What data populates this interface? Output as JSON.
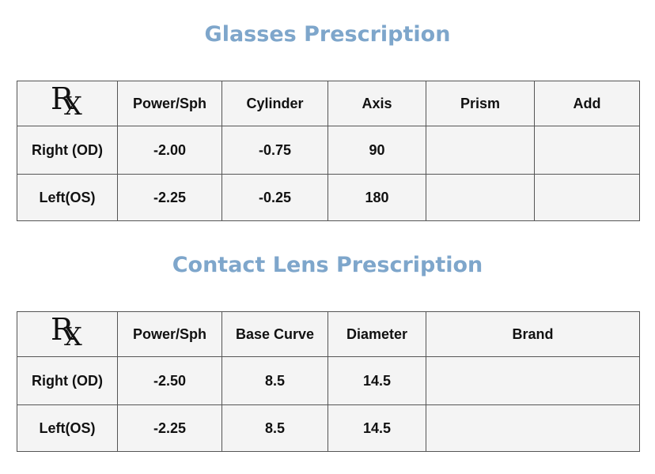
{
  "glasses": {
    "title": "Glasses Prescription",
    "headers": [
      "Power/Sph",
      "Cylinder",
      "Axis",
      "Prism",
      "Add"
    ],
    "rows": [
      {
        "label": "Right (OD)",
        "values": [
          "-2.00",
          "-0.75",
          "90",
          "",
          ""
        ]
      },
      {
        "label": "Left(OS)",
        "values": [
          "-2.25",
          "-0.25",
          "180",
          "",
          ""
        ]
      }
    ]
  },
  "contacts": {
    "title": "Contact Lens Prescription",
    "headers": [
      "Power/Sph",
      "Base Curve",
      "Diameter",
      "Brand"
    ],
    "rows": [
      {
        "label": "Right (OD)",
        "values": [
          "-2.50",
          "8.5",
          "14.5",
          ""
        ]
      },
      {
        "label": "Left(OS)",
        "values": [
          "-2.25",
          "8.5",
          "14.5",
          ""
        ]
      }
    ]
  },
  "colors": {
    "title": "#7ea6cb",
    "value": "#f59b18",
    "border": "#555555",
    "cell_bg": "#f4f4f4"
  }
}
